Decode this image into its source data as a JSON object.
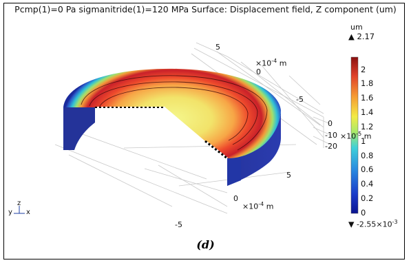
{
  "plot": {
    "title": "Pcmp(1)=0 Pa sigmanitride(1)=120 MPa  Surface: Displacement field, Z component (um)"
  },
  "colorbar": {
    "unit": "um",
    "max_label": "▲ 2.17",
    "min_label_prefix": "▼ -2.55×10",
    "min_label_exp": "-3",
    "ticks": [
      "2",
      "1.8",
      "1.6",
      "1.4",
      "1.2",
      "1",
      "0.8",
      "0.6",
      "0.4",
      "0.2",
      "0"
    ]
  },
  "axes": {
    "top_tick_5": "5",
    "top_unit_base": "×10",
    "top_unit_exp": "-4",
    "top_unit_suffix": " m",
    "top_tick_0": "0",
    "right_tick_-5": "-5",
    "z_tick_0": "0",
    "z_tick_-10": "-10",
    "z_unit_base": "×10",
    "z_unit_exp": "-5",
    "z_unit_suffix": " m",
    "z_tick_-20": "-20",
    "bottom_tick_5": "5",
    "bottom_tick_0": "0",
    "bottom_unit_base": "×10",
    "bottom_unit_exp": "-4",
    "bottom_unit_suffix": " m",
    "bottom_tick_-5": "-5"
  },
  "triad": {
    "y": "y",
    "z": "z",
    "x": "x"
  },
  "caption": "(d)"
}
